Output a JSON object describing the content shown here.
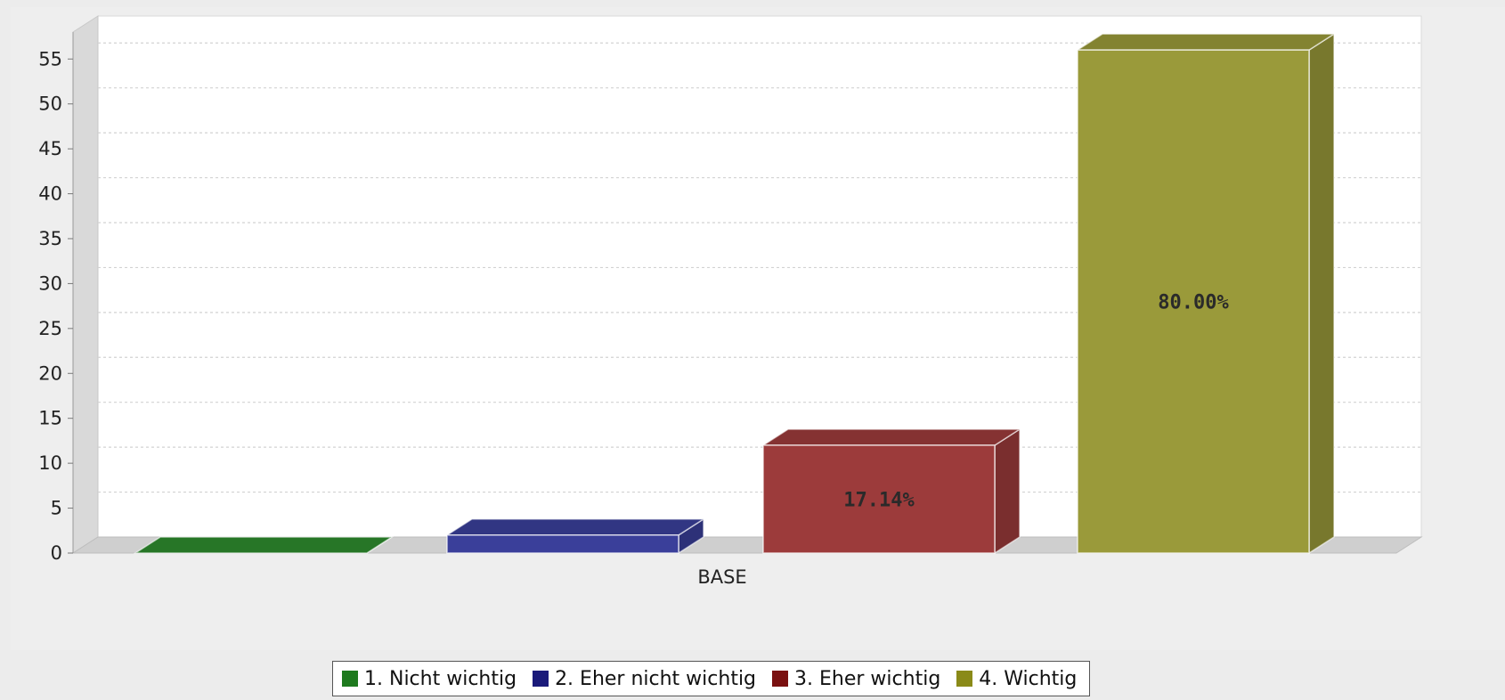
{
  "chart_data": {
    "type": "bar",
    "style": "3d",
    "categories": [
      "BASE"
    ],
    "ylim": [
      0,
      58
    ],
    "yticks": [
      0,
      5,
      10,
      15,
      20,
      25,
      30,
      35,
      40,
      45,
      50,
      55
    ],
    "grid": true,
    "legend_position": "bottom",
    "series": [
      {
        "name": "1. Nicht wichtig",
        "values": [
          0
        ],
        "label": "",
        "color": "#2e8b2e"
      },
      {
        "name": "2. Eher nicht wichtig",
        "values": [
          2
        ],
        "label": "",
        "color": "#3a3f9a"
      },
      {
        "name": "3. Eher wichtig",
        "values": [
          12
        ],
        "label": "17.14%",
        "color": "#9c3b3b"
      },
      {
        "name": "4. Wichtig",
        "values": [
          56
        ],
        "label": "80.00%",
        "color": "#9a9a3a"
      }
    ]
  },
  "legend": {
    "items": [
      {
        "label": "1. Nicht wichtig",
        "color": "#1e7a1e"
      },
      {
        "label": "2. Eher nicht wichtig",
        "color": "#1a1a7a"
      },
      {
        "label": "3. Eher wichtig",
        "color": "#7a1010"
      },
      {
        "label": "4. Wichtig",
        "color": "#8a8a18"
      }
    ]
  }
}
